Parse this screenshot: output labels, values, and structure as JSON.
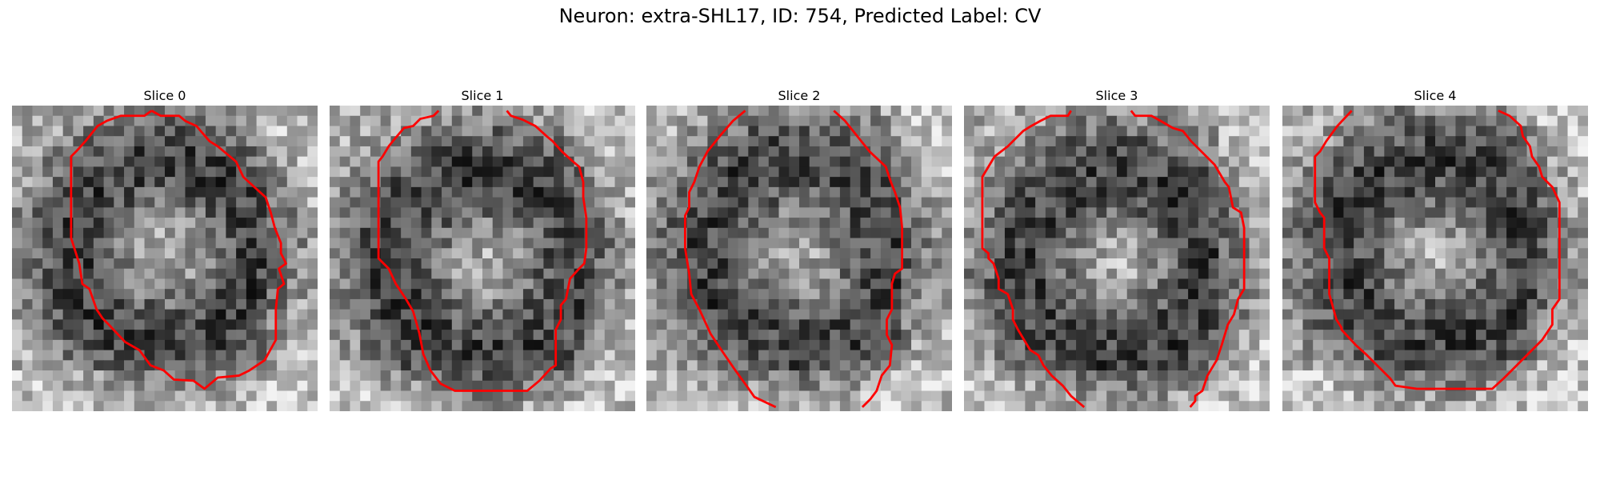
{
  "figure": {
    "title": "Neuron: extra-SHL17, ID: 754, Predicted Label: CV",
    "contour_color": "#ff0000",
    "colormap": "gray"
  },
  "slices": [
    {
      "label": "Slice 0"
    },
    {
      "label": "Slice 1"
    },
    {
      "label": "Slice 2"
    },
    {
      "label": "Slice 3"
    },
    {
      "label": "Slice 4"
    }
  ]
}
